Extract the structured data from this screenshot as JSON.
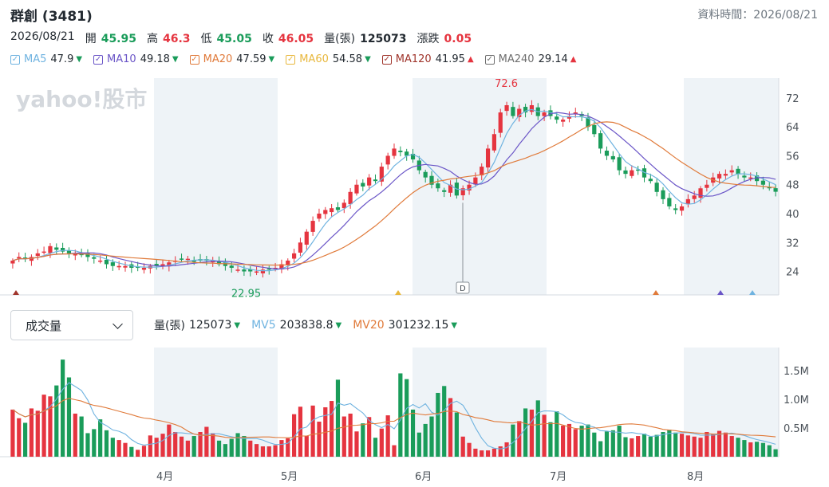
{
  "header": {
    "title": "群創 (3481)",
    "data_time": "資料時間：2026/08/21"
  },
  "quote": {
    "date": "2026/08/21",
    "open_label": "開",
    "open": "45.95",
    "high_label": "高",
    "high": "46.3",
    "low_label": "低",
    "low": "45.05",
    "close_label": "收",
    "close": "46.05",
    "volume_label": "量(張)",
    "volume": "125073",
    "change_label": "漲跌",
    "change": "0.05"
  },
  "ma_legend": [
    {
      "name": "MA5",
      "value": "47.9",
      "dir": "down",
      "color": "#6fb3e0"
    },
    {
      "name": "MA10",
      "value": "49.18",
      "dir": "down",
      "color": "#6a55c7"
    },
    {
      "name": "MA20",
      "value": "47.59",
      "dir": "down",
      "color": "#e07a3a"
    },
    {
      "name": "MA60",
      "value": "54.58",
      "dir": "down",
      "color": "#e8b83e"
    },
    {
      "name": "MA120",
      "value": "41.95",
      "dir": "up",
      "color": "#a0352c"
    },
    {
      "name": "MA240",
      "value": "29.14",
      "dir": "up",
      "color": "#6e6e6e"
    }
  ],
  "watermark": "yahoo!股市",
  "volume_panel": {
    "indicator_select": "成交量",
    "vol_label": "量(張)",
    "vol_value": "125073",
    "mv5_label": "MV5",
    "mv5_value": "203838.8",
    "mv20_label": "MV20",
    "mv20_value": "301232.15"
  },
  "colors": {
    "up": "#e5343f",
    "down": "#1a9c5a",
    "ma5": "#6fb3e0",
    "ma10": "#6a55c7",
    "ma20": "#e07a3a",
    "shade": "#eef3f7"
  },
  "chart_data": [
    {
      "type": "candlestick",
      "y_ticks": [
        "72",
        "64",
        "56",
        "48",
        "40",
        "32",
        "24"
      ],
      "ylim": [
        17.5,
        77.5
      ],
      "annotations": [
        {
          "text": "72.6",
          "kind": "high"
        },
        {
          "text": "22.95",
          "kind": "low"
        },
        {
          "text": "D",
          "kind": "dividend"
        }
      ],
      "close": [
        27,
        28,
        27.5,
        28,
        29,
        29.5,
        31,
        30,
        29.5,
        29,
        29,
        28.5,
        28,
        27.5,
        27,
        26,
        25.5,
        25.5,
        25.5,
        25,
        25,
        25,
        25.5,
        25.5,
        26,
        26.5,
        27,
        27.5,
        27.5,
        27,
        27,
        27,
        27,
        26,
        25.5,
        25,
        24.5,
        24,
        24,
        24,
        24.5,
        24.5,
        25,
        26,
        27,
        29,
        32,
        35,
        38,
        40,
        41,
        41.5,
        41,
        43,
        46,
        48,
        47.5,
        50,
        49,
        53,
        56,
        58,
        57,
        56,
        55,
        52,
        50,
        48,
        47,
        46,
        48,
        45,
        47,
        48,
        50,
        53,
        58,
        62,
        68,
        70,
        67,
        69,
        68,
        70,
        67,
        68,
        67,
        66,
        66,
        67,
        68,
        67,
        64,
        62,
        58,
        56,
        55,
        52,
        51,
        52,
        52,
        50,
        49,
        46,
        44,
        42,
        41,
        42,
        44,
        45,
        47,
        48,
        50,
        51,
        51,
        52,
        51,
        50,
        50,
        49,
        48,
        47,
        46.05
      ],
      "volume": [
        0.82,
        0.67,
        0.59,
        0.84,
        0.8,
        1.08,
        1.05,
        1.24,
        1.69,
        1.38,
        0.75,
        0.7,
        0.41,
        0.48,
        0.65,
        0.46,
        0.33,
        0.29,
        0.24,
        0.17,
        0.12,
        0.19,
        0.37,
        0.33,
        0.4,
        0.56,
        0.43,
        0.35,
        0.28,
        0.36,
        0.43,
        0.52,
        0.41,
        0.28,
        0.22,
        0.31,
        0.41,
        0.36,
        0.28,
        0.22,
        0.18,
        0.18,
        0.2,
        0.29,
        0.32,
        0.74,
        0.87,
        0.36,
        0.89,
        0.61,
        0.86,
        0.97,
        1.34,
        0.7,
        0.75,
        0.44,
        0.58,
        0.69,
        0.33,
        0.49,
        0.72,
        0.2,
        1.45,
        1.35,
        0.82,
        0.42,
        0.57,
        0.7,
        1.11,
        1.23,
        1.02,
        0.77,
        0.35,
        0.24,
        0.14,
        0.11,
        0.11,
        0.14,
        0.18,
        0.25,
        0.56,
        0.62,
        0.84,
        0.82,
        0.98,
        0.73,
        0.6,
        0.79,
        0.54,
        0.57,
        0.48,
        0.54,
        0.56,
        0.42,
        0.27,
        0.44,
        0.46,
        0.54,
        0.34,
        0.32,
        0.36,
        0.4,
        0.35,
        0.38,
        0.43,
        0.47,
        0.42,
        0.4,
        0.37,
        0.35,
        0.33,
        0.43,
        0.39,
        0.45,
        0.42,
        0.36,
        0.33,
        0.29,
        0.25,
        0.26,
        0.24,
        0.2,
        0.13
      ],
      "volume_y_ticks": [
        "1.5M",
        "1.0M",
        "0.5M"
      ],
      "volume_ylim": [
        0,
        1.9
      ],
      "x_ticks": [
        "4月",
        "5月",
        "6月",
        "7月",
        "8月"
      ]
    }
  ]
}
